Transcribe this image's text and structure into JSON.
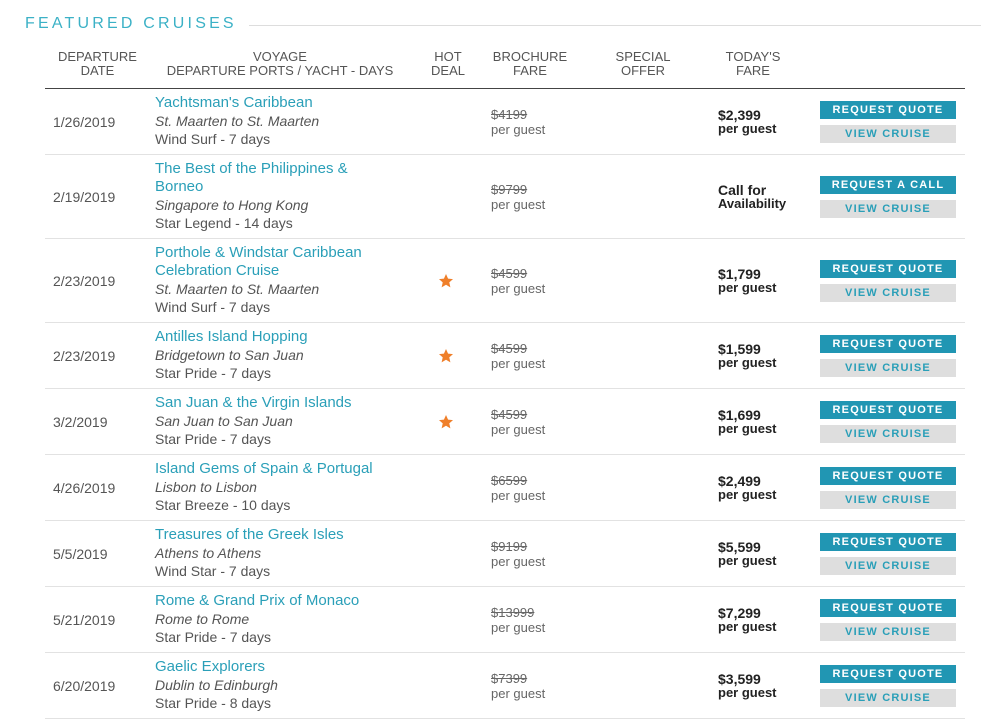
{
  "section": {
    "title": "FEATURED CRUISES"
  },
  "headers": {
    "departure_date": [
      "DEPARTURE",
      "DATE"
    ],
    "voyage": [
      "VOYAGE",
      "DEPARTURE PORTS / YACHT - DAYS"
    ],
    "hot_deal": [
      "HOT",
      "DEAL"
    ],
    "brochure_fare": [
      "BROCHURE",
      "FARE"
    ],
    "special_offer": [
      "SPECIAL",
      "OFFER"
    ],
    "todays_fare": [
      "TODAY'S",
      "FARE"
    ]
  },
  "colors": {
    "accent": "#2a9fb8",
    "button_primary": "#2196b3",
    "button_secondary": "#dedede",
    "hot_deal_star": "#ef7f2a"
  },
  "icons": {
    "hot_deal": "star-icon"
  },
  "cruises": [
    {
      "date": "1/26/2019",
      "name": "Yachtsman's Caribbean",
      "ports": "St. Maarten to St. Maarten",
      "ship": "Wind Surf - 7 days",
      "hot_deal": false,
      "brochure": "$4199",
      "brochure_unit": "per guest",
      "today_price": "$2,399",
      "today_unit": "per guest",
      "primary_button": "REQUEST QUOTE",
      "secondary_button": "VIEW CRUISE"
    },
    {
      "date": "2/19/2019",
      "name": "The Best of the Philippines & Borneo",
      "ports": "Singapore to Hong Kong",
      "ship": "Star Legend - 14 days",
      "hot_deal": false,
      "brochure": "$9799",
      "brochure_unit": "per guest",
      "today_price": "Call for",
      "today_unit": "Availability",
      "primary_button": "REQUEST A CALL",
      "secondary_button": "VIEW CRUISE"
    },
    {
      "date": "2/23/2019",
      "name": "Porthole & Windstar Caribbean Celebration Cruise",
      "ports": "St. Maarten to St. Maarten",
      "ship": "Wind Surf - 7 days",
      "hot_deal": true,
      "brochure": "$4599",
      "brochure_unit": "per guest",
      "today_price": "$1,799",
      "today_unit": "per guest",
      "primary_button": "REQUEST QUOTE",
      "secondary_button": "VIEW CRUISE"
    },
    {
      "date": "2/23/2019",
      "name": "Antilles Island Hopping",
      "ports": "Bridgetown to San Juan",
      "ship": "Star Pride - 7 days",
      "hot_deal": true,
      "brochure": "$4599",
      "brochure_unit": "per guest",
      "today_price": "$1,599",
      "today_unit": "per guest",
      "primary_button": "REQUEST QUOTE",
      "secondary_button": "VIEW CRUISE"
    },
    {
      "date": "3/2/2019",
      "name": "San Juan & the Virgin Islands",
      "ports": "San Juan to San Juan",
      "ship": "Star Pride - 7 days",
      "hot_deal": true,
      "brochure": "$4599",
      "brochure_unit": "per guest",
      "today_price": "$1,699",
      "today_unit": "per guest",
      "primary_button": "REQUEST QUOTE",
      "secondary_button": "VIEW CRUISE"
    },
    {
      "date": "4/26/2019",
      "name": "Island Gems of Spain & Portugal",
      "ports": "Lisbon to Lisbon",
      "ship": "Star Breeze - 10 days",
      "hot_deal": false,
      "brochure": "$6599",
      "brochure_unit": "per guest",
      "today_price": "$2,499",
      "today_unit": "per guest",
      "primary_button": "REQUEST QUOTE",
      "secondary_button": "VIEW CRUISE"
    },
    {
      "date": "5/5/2019",
      "name": "Treasures of the Greek Isles",
      "ports": "Athens to Athens",
      "ship": "Wind Star - 7 days",
      "hot_deal": false,
      "brochure": "$9199",
      "brochure_unit": "per guest",
      "today_price": "$5,599",
      "today_unit": "per guest",
      "primary_button": "REQUEST QUOTE",
      "secondary_button": "VIEW CRUISE"
    },
    {
      "date": "5/21/2019",
      "name": "Rome & Grand Prix of Monaco",
      "ports": "Rome to Rome",
      "ship": "Star Pride - 7 days",
      "hot_deal": false,
      "brochure": "$13999",
      "brochure_unit": "per guest",
      "today_price": "$7,299",
      "today_unit": "per guest",
      "primary_button": "REQUEST QUOTE",
      "secondary_button": "VIEW CRUISE"
    },
    {
      "date": "6/20/2019",
      "name": "Gaelic Explorers",
      "ports": "Dublin to Edinburgh",
      "ship": "Star Pride - 8 days",
      "hot_deal": false,
      "brochure": "$7399",
      "brochure_unit": "per guest",
      "today_price": "$3,599",
      "today_unit": "per guest",
      "primary_button": "REQUEST QUOTE",
      "secondary_button": "VIEW CRUISE"
    }
  ]
}
